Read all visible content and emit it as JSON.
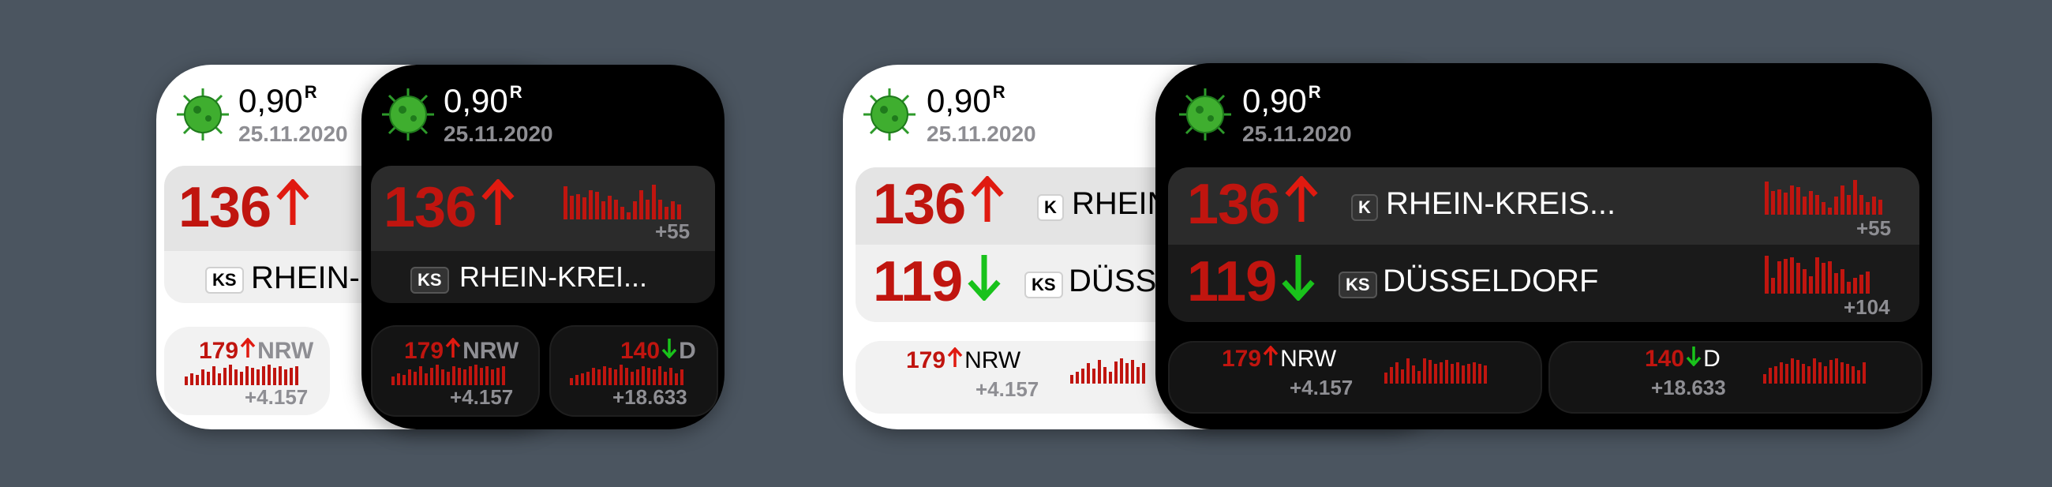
{
  "widget": {
    "r_value": "0,90",
    "r_label": "R",
    "date": "25.11.2020",
    "district_primary": {
      "value": "136",
      "trend": "up",
      "badge": "K",
      "badge_small": "KS",
      "name_full": "RHEIN-KREIS...",
      "name_short": "RHEIN-KREI...",
      "name_clip": "RHEIN-",
      "delta": "+55"
    },
    "district_secondary": {
      "value": "119",
      "trend": "down",
      "badge": "KS",
      "name": "DÜSSELDORF",
      "name_clip": "DÜSS",
      "delta": "+104"
    },
    "state": {
      "value": "179",
      "trend": "up",
      "name": "NRW",
      "delta": "+4.157"
    },
    "country": {
      "value": "140",
      "trend": "down",
      "name": "D",
      "delta": "+18.633"
    }
  },
  "colors": {
    "background": "#4b5560",
    "incidence_red": "#c0150f",
    "trend_up": "#e01a10",
    "trend_down": "#19c21b",
    "muted": "#8e8e93"
  },
  "icons": {
    "virus": "coronavirus-icon",
    "up": "arrow-up-icon",
    "down": "arrow-down-icon"
  }
}
